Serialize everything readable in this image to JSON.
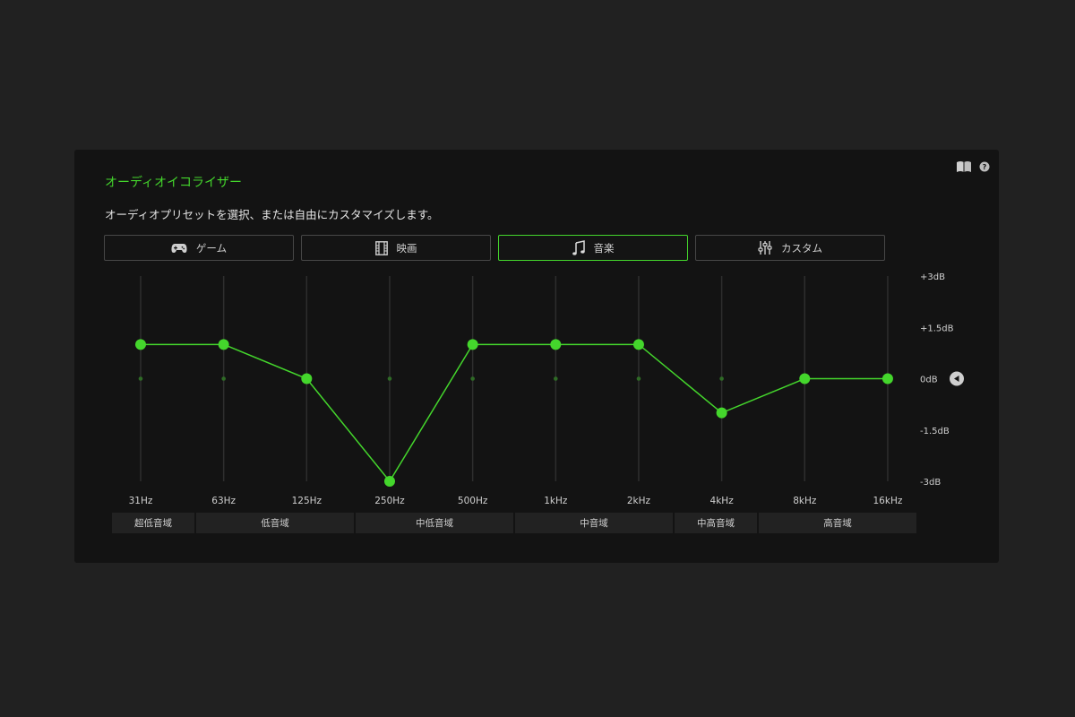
{
  "panel": {
    "title": "オーディオイコライザー",
    "description": "オーディオプリセットを選択、または自由にカスタマイズします。",
    "icons": [
      "book-icon",
      "help-icon"
    ]
  },
  "presets": [
    {
      "label": "ゲーム",
      "icon": "gamepad-icon",
      "active": false
    },
    {
      "label": "映画",
      "icon": "film-icon",
      "active": false
    },
    {
      "label": "音楽",
      "icon": "music-note-icon",
      "active": true
    },
    {
      "label": "カスタム",
      "icon": "sliders-icon",
      "active": false
    }
  ],
  "colors": {
    "accent": "#44d62c",
    "panel": "#131313",
    "background": "#212121"
  },
  "chart_data": {
    "type": "line",
    "x": [
      "31Hz",
      "63Hz",
      "125Hz",
      "250Hz",
      "500Hz",
      "1kHz",
      "2kHz",
      "4kHz",
      "8kHz",
      "16kHz"
    ],
    "values": [
      1,
      1,
      0,
      -3,
      1,
      1,
      1,
      -1,
      0,
      0
    ],
    "ylim": [
      -3,
      3
    ],
    "y_ticks": [
      "+3dB",
      "+1.5dB",
      "0dB",
      "-1.5dB",
      "-3dB"
    ],
    "bands": [
      "超低音域",
      "低音域",
      "中低音域",
      "中音域",
      "中高音域",
      "高音域"
    ],
    "reset_icon": "reset-arrow-icon"
  }
}
